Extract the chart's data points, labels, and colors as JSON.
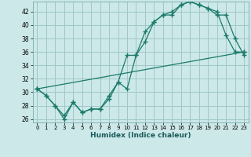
{
  "xlabel": "Humidex (Indice chaleur)",
  "bg_color": "#cce8e8",
  "grid_color": "#a0c8c8",
  "line_color": "#1a7a6a",
  "xlim": [
    -0.5,
    23.5
  ],
  "ylim": [
    25.5,
    43.5
  ],
  "yticks": [
    26,
    28,
    30,
    32,
    34,
    36,
    38,
    40,
    42
  ],
  "xticks": [
    0,
    1,
    2,
    3,
    4,
    5,
    6,
    7,
    8,
    9,
    10,
    11,
    12,
    13,
    14,
    15,
    16,
    17,
    18,
    19,
    20,
    21,
    22,
    23
  ],
  "line1_x": [
    0,
    1,
    2,
    3,
    4,
    5,
    6,
    7,
    8,
    9,
    10,
    11,
    12,
    13,
    14,
    15,
    16,
    17,
    18,
    19,
    20,
    21,
    22,
    23
  ],
  "line1_y": [
    30.5,
    29.5,
    28.0,
    26.5,
    28.5,
    27.0,
    27.5,
    27.5,
    29.0,
    31.5,
    35.5,
    35.5,
    39.0,
    40.5,
    41.5,
    41.5,
    43.0,
    43.5,
    43.0,
    42.5,
    42.0,
    38.5,
    36.0,
    36.0
  ],
  "line2_x": [
    0,
    1,
    2,
    3,
    4,
    5,
    6,
    7,
    8,
    9,
    10,
    11,
    12,
    13,
    14,
    15,
    16,
    17,
    18,
    19,
    20,
    21,
    22,
    23
  ],
  "line2_y": [
    30.5,
    29.5,
    28.0,
    26.0,
    28.5,
    27.0,
    27.5,
    27.5,
    29.5,
    31.5,
    30.5,
    35.5,
    37.5,
    40.5,
    41.5,
    42.0,
    43.0,
    43.5,
    43.0,
    42.5,
    41.5,
    41.5,
    38.0,
    35.5
  ],
  "line3_x": [
    0,
    23
  ],
  "line3_y": [
    30.5,
    36.0
  ]
}
